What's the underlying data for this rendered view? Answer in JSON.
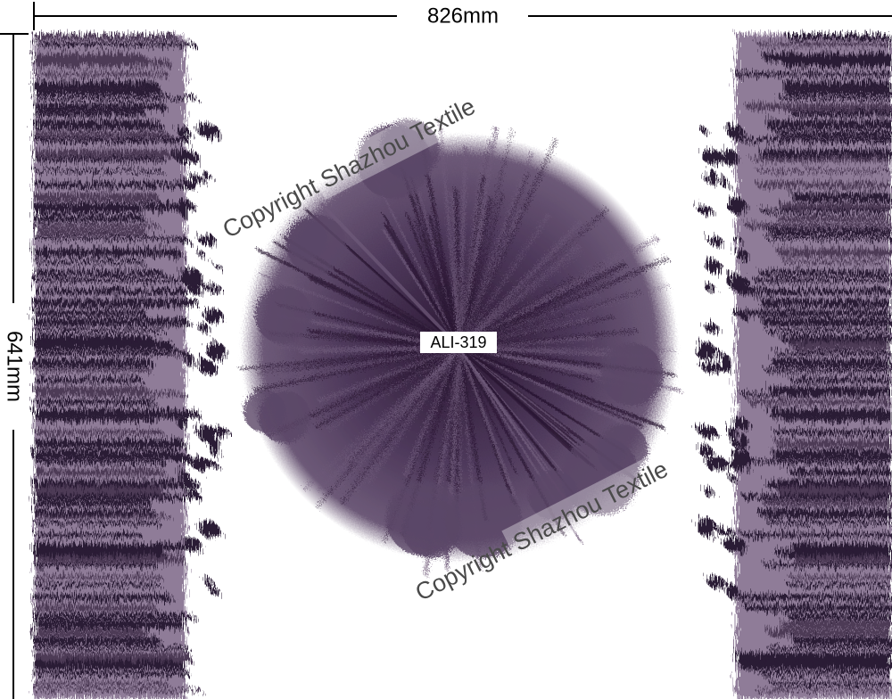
{
  "dimensions": {
    "width": "826mm",
    "height": "641mm"
  },
  "design_code": "ALI-319",
  "watermarks": [
    "Copyright Shazhou Textile",
    "Copyright Shazhou Textile"
  ]
}
